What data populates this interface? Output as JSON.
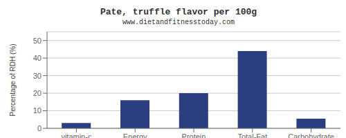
{
  "chart_data": {
    "type": "bar",
    "title": "Pate, truffle flavor per 100g",
    "subtitle": "www.dietandfitnesstoday.com",
    "categories": [
      "vitamin-c",
      "Energy",
      "Protein",
      "Total-Fat",
      "Carbohydrate"
    ],
    "values": [
      3,
      16,
      20,
      44,
      5.5
    ],
    "color": "#2b3f80",
    "ylabel": "Percentage of RDH (%)",
    "ylim": [
      0,
      55
    ],
    "yticks": [
      0,
      10,
      20,
      30,
      40,
      50
    ],
    "grid": true
  }
}
